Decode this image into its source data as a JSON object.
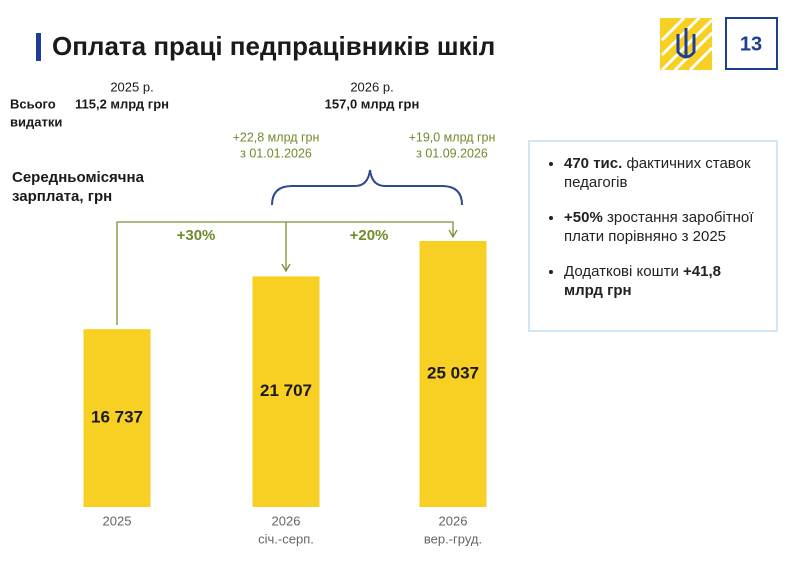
{
  "header": {
    "title": "Оплата праці педпрацівників шкіл",
    "page_number": "13"
  },
  "summary": {
    "label": [
      "Всього",
      "видатки"
    ],
    "year_2025": {
      "year": "2025 р.",
      "amount": "115,2 млрд грн"
    },
    "year_2026": {
      "year": "2026 р.",
      "amount": "157,0 млрд грн"
    },
    "additions": [
      {
        "amount": "+22,8 млрд грн",
        "date": "з 01.01.2026"
      },
      {
        "amount": "+19,0 млрд грн",
        "date": "з 01.09.2026"
      }
    ]
  },
  "chart_data": {
    "type": "bar",
    "y_title": [
      "Середньомісячна",
      "зарплата, грн"
    ],
    "categories": [
      "2025",
      "2026",
      "2026"
    ],
    "category_sublabels": [
      null,
      "січ.-серп.",
      "вер.-груд."
    ],
    "values": [
      16737,
      21707,
      25037
    ],
    "value_labels": [
      "16 737",
      "21 707",
      "25 037"
    ],
    "color": "#f8cf23",
    "growth_labels": [
      "+30%",
      "+20%"
    ]
  },
  "info_box": {
    "bullets": [
      [
        {
          "text": "470 тис.",
          "bold": true
        },
        {
          "text": "фактичних ставок педагогів",
          "bold": false
        }
      ],
      [
        {
          "text": "+50%",
          "bold": true
        },
        {
          "text": "зростання заробітної плати порівняно з 2025",
          "bold": false
        }
      ],
      [
        {
          "text": "Додаткові кошти",
          "bold": false
        },
        {
          "text": "+41,8 млрд грн",
          "bold": true
        }
      ]
    ]
  }
}
